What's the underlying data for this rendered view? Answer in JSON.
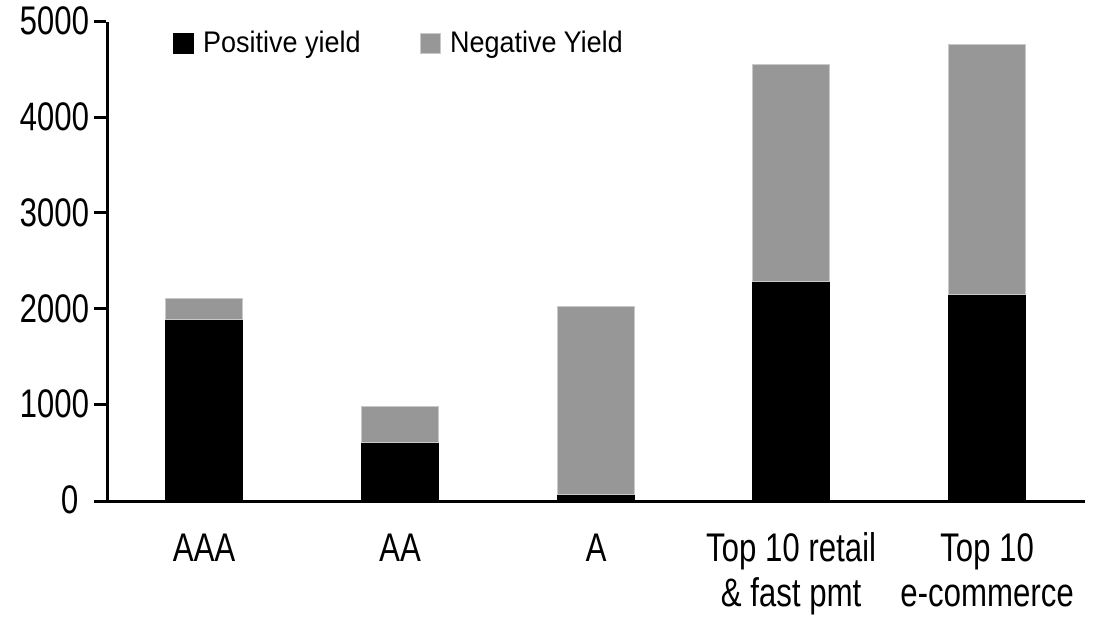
{
  "chart_data": {
    "type": "bar",
    "stacked": true,
    "title": "",
    "xlabel": "",
    "ylabel": "",
    "categories": [
      "AAA",
      "AA",
      "A",
      "Top 10 retail & fast pmt",
      "Top 10 e-commerce"
    ],
    "category_label_lines": [
      [
        "AAA"
      ],
      [
        "AA"
      ],
      [
        "A"
      ],
      [
        "Top 10 retail",
        "& fast pmt"
      ],
      [
        "Top 10",
        "e-commerce"
      ]
    ],
    "series": [
      {
        "name": "Positive yield",
        "color": "#000000",
        "values": [
          1880,
          600,
          50,
          2280,
          2140
        ]
      },
      {
        "name": "Negative Yield",
        "color": "#979797",
        "values": [
          230,
          380,
          1980,
          2280,
          2620
        ]
      }
    ],
    "stack_totals": [
      2110,
      980,
      2030,
      4560,
      4760
    ],
    "ylim": [
      0,
      5000
    ],
    "yticks": [
      0,
      1000,
      2000,
      3000,
      4000,
      5000
    ],
    "ytick_labels": [
      "0",
      "1000",
      "2000",
      "3000",
      "4000",
      "5000"
    ],
    "grid": false,
    "legend_position": "top",
    "background_color": "#ffffff",
    "axis_color": "#000000"
  }
}
